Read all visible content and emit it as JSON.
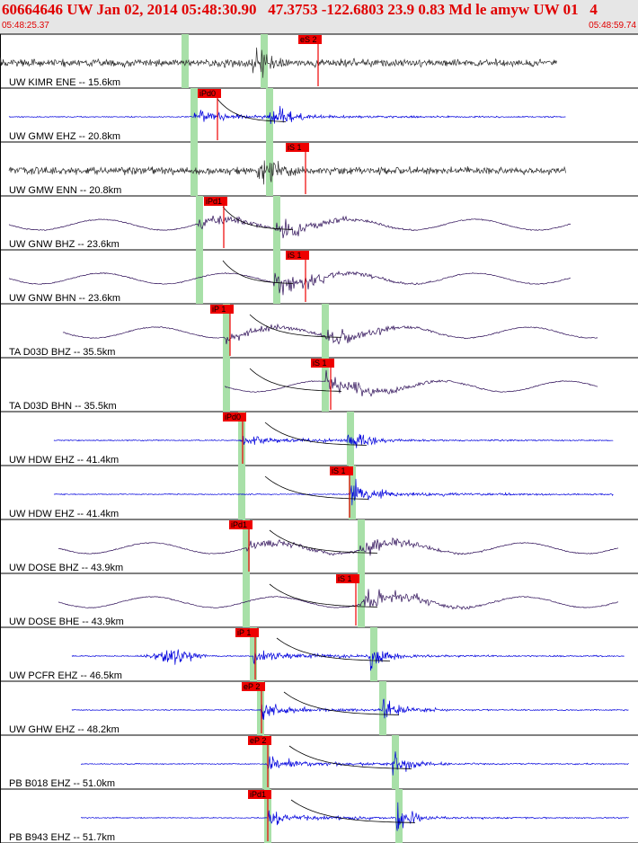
{
  "header": {
    "title": "60664646 UW Jan 02, 2014 05:48:30.90   47.3753 -122.6803 23.9 0.83 Md le amyw UW 01   4",
    "start_time": "05:48:25.37",
    "end_time": "05:48:59.74"
  },
  "chart_data": {
    "type": "line",
    "time_range": [
      "05:48:25.37",
      "05:48:59.74"
    ],
    "colors": {
      "short_period": "#0000dd",
      "broadband": "#2a0a55",
      "accel": "#303030",
      "pick": "#ee0000",
      "window": "#a8e0a8",
      "coda": "#000000"
    },
    "traces": [
      {
        "label": "UW KIMR ENE -- 15.6km",
        "pick": "eS 2",
        "pick_time": 0.5,
        "color": "accel"
      },
      {
        "label": "UW GMW EHZ -- 20.8km",
        "pick": "iPd0",
        "pick_time": 0.34,
        "color": "short_period"
      },
      {
        "label": "UW GMW ENN -- 20.8km",
        "pick": "iS 1",
        "pick_time": 0.48,
        "color": "accel"
      },
      {
        "label": "UW GNW BHZ -- 23.6km",
        "pick": "iPd1",
        "pick_time": 0.35,
        "color": "broadband"
      },
      {
        "label": "UW GNW BHN -- 23.6km",
        "pick": "iS 1",
        "pick_time": 0.48,
        "color": "broadband"
      },
      {
        "label": "TA D03D BHZ -- 35.5km",
        "pick": "iP 1",
        "pick_time": 0.36,
        "color": "broadband"
      },
      {
        "label": "TA D03D BHN -- 35.5km",
        "pick": "iS 1",
        "pick_time": 0.52,
        "color": "broadband"
      },
      {
        "label": "UW HDW EHZ -- 41.4km",
        "pick": "iPd0",
        "pick_time": 0.38,
        "color": "short_period"
      },
      {
        "label": "UW HDW EHZ -- 41.4km",
        "pick": "iS 1",
        "pick_time": 0.55,
        "color": "short_period"
      },
      {
        "label": "UW DOSE BHZ -- 43.9km",
        "pick": "iPd1",
        "pick_time": 0.39,
        "color": "broadband"
      },
      {
        "label": "UW DOSE BHE -- 43.9km",
        "pick": "iS 1",
        "pick_time": 0.56,
        "color": "broadband"
      },
      {
        "label": "UW PCFR EHZ -- 46.5km",
        "pick": "iP 1",
        "pick_time": 0.4,
        "color": "short_period"
      },
      {
        "label": "UW GHW EHZ -- 48.2km",
        "pick": "eP 2",
        "pick_time": 0.41,
        "color": "short_period"
      },
      {
        "label": "PB B018 EHZ -- 51.0km",
        "pick": "eP 2",
        "pick_time": 0.42,
        "color": "short_period"
      },
      {
        "label": "PB B943 EHZ -- 51.7km",
        "pick": "iPd1",
        "pick_time": 0.42,
        "color": "short_period"
      }
    ]
  }
}
